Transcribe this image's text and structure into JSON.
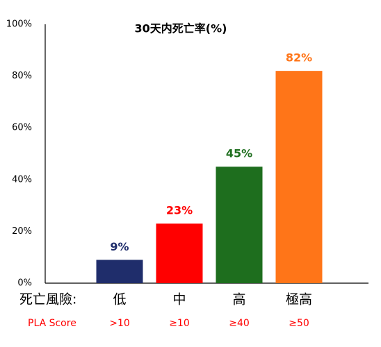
{
  "chart_data": {
    "type": "bar",
    "title": "30天内死亡率(%)",
    "x_label": "死亡風險:",
    "categories": [
      "低",
      "中",
      "高",
      "極高"
    ],
    "values": [
      9,
      23,
      45,
      82
    ],
    "value_labels": [
      "9%",
      "23%",
      "45%",
      "82%"
    ],
    "colors": [
      "#1f2d6b",
      "#ff0000",
      "#1e6e1e",
      "#ff7518"
    ],
    "score_label": "PLA Score",
    "scores": [
      ">10",
      "≥10",
      "≥40",
      "≥50"
    ],
    "ylim": [
      0,
      100
    ],
    "yticks": [
      {
        "value": 0,
        "label": "0%"
      },
      {
        "value": 20,
        "label": "20%"
      },
      {
        "value": 40,
        "label": "40%"
      },
      {
        "value": 60,
        "label": "60%"
      },
      {
        "value": 80,
        "label": "80%"
      },
      {
        "value": 100,
        "label": "100%"
      }
    ],
    "grid": false
  }
}
